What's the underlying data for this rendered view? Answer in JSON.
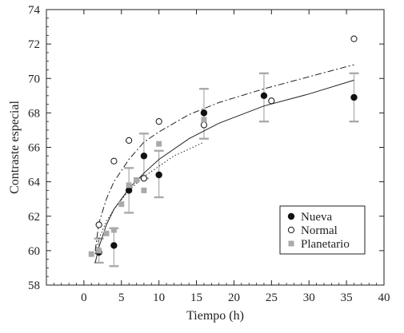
{
  "chart_data": {
    "type": "scatter",
    "xlabel": "Tiempo (h)",
    "ylabel": "Contraste especial",
    "xlim": [
      -5,
      40
    ],
    "ylim": [
      58,
      74
    ],
    "xticks": [
      0,
      5,
      10,
      15,
      20,
      25,
      30,
      35,
      40
    ],
    "yticks": [
      58,
      60,
      62,
      64,
      66,
      68,
      70,
      72,
      74
    ],
    "legend": {
      "position": "lower-right",
      "entries": [
        "Nueva",
        "Normal",
        "Planetario"
      ]
    },
    "series": [
      {
        "name": "Nueva",
        "marker": "filled-circle",
        "color": "#111111",
        "x": [
          2,
          4,
          6,
          8,
          10,
          16,
          24,
          36
        ],
        "y": [
          59.9,
          60.3,
          63.5,
          65.5,
          64.4,
          68.0,
          69.0,
          68.9
        ],
        "err_low": [
          59.3,
          59.1,
          62.2,
          64.2,
          63.1,
          66.5,
          67.5,
          67.5
        ],
        "err_high": [
          60.7,
          61.3,
          64.8,
          66.8,
          65.8,
          69.4,
          70.3,
          70.3
        ]
      },
      {
        "name": "Normal",
        "marker": "open-circle",
        "color": "#111111",
        "x": [
          2,
          4,
          6,
          8,
          10,
          16,
          25,
          36
        ],
        "y": [
          61.5,
          65.2,
          66.4,
          64.2,
          67.5,
          67.3,
          68.7,
          72.3
        ]
      },
      {
        "name": "Planetario",
        "marker": "square",
        "color": "#aaaaaa",
        "x": [
          1,
          2,
          3,
          4,
          5,
          6,
          7,
          8,
          10,
          16
        ],
        "y": [
          59.8,
          60.0,
          61.0,
          61.2,
          62.7,
          63.8,
          64.1,
          63.5,
          66.2,
          67.6
        ]
      }
    ],
    "fit_lines": [
      {
        "style": "solid",
        "x": [
          1.5,
          2,
          3,
          4,
          6,
          8,
          10,
          14,
          18,
          24,
          30,
          36
        ],
        "y": [
          59.3,
          60.2,
          61.5,
          62.4,
          63.6,
          64.5,
          65.3,
          66.5,
          67.4,
          68.4,
          69.1,
          69.9
        ]
      },
      {
        "style": "dashdot",
        "x": [
          1.5,
          2,
          3,
          4,
          6,
          8,
          10,
          14,
          18,
          24,
          30,
          36
        ],
        "y": [
          60.0,
          61.6,
          63.0,
          64.0,
          65.3,
          66.3,
          66.9,
          67.9,
          68.6,
          69.4,
          70.1,
          70.8
        ]
      },
      {
        "style": "dotted",
        "x": [
          1.5,
          2,
          3,
          4,
          6,
          8,
          10,
          12,
          14,
          16
        ],
        "y": [
          59.8,
          60.7,
          61.7,
          62.4,
          63.5,
          64.3,
          64.9,
          65.5,
          65.9,
          66.3
        ]
      }
    ],
    "colors": {
      "axis": "#222222",
      "errorbar": "#aaaaaa",
      "filled": "#111111",
      "square": "#aaaaaa"
    }
  }
}
